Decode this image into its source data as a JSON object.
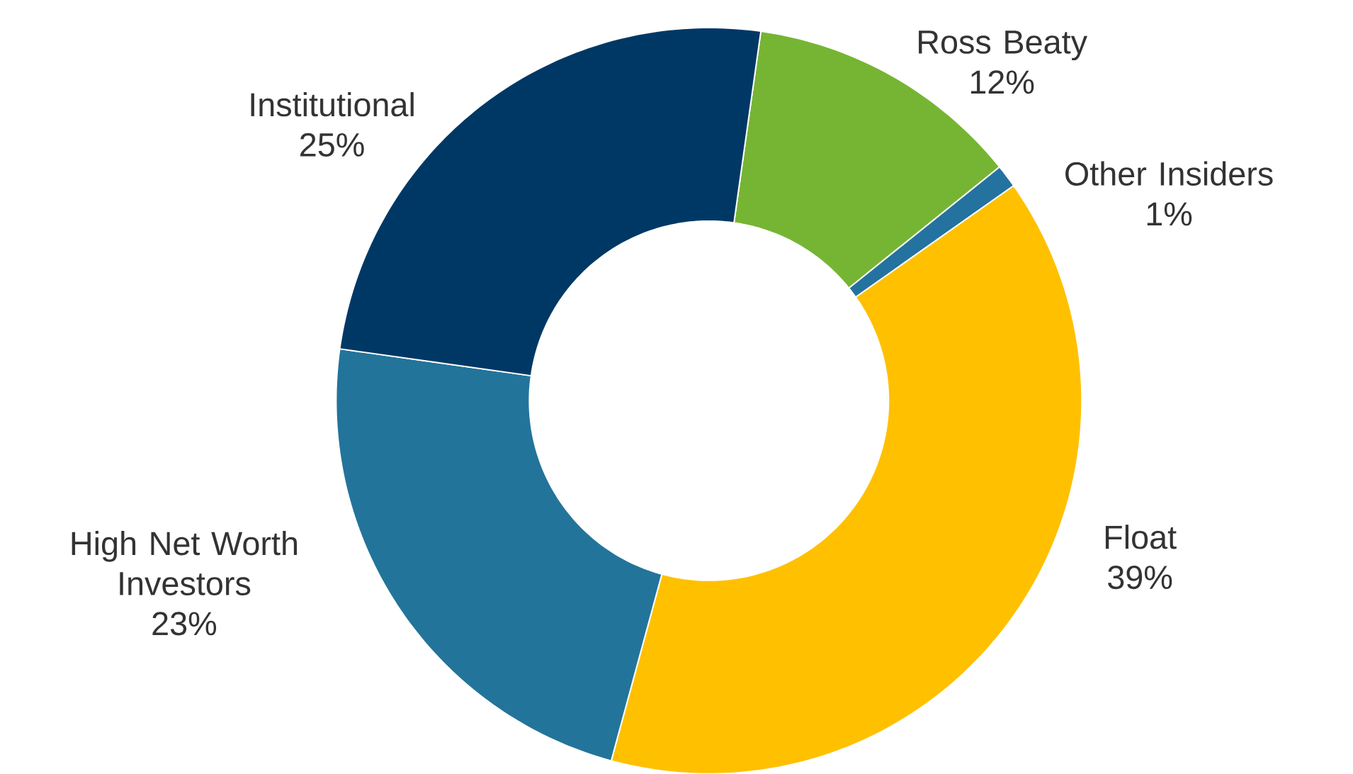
{
  "chart_data": {
    "type": "donut",
    "categories": [
      "Ross Beaty",
      "Other Insiders",
      "Float",
      "High Net Worth Investors",
      "Institutional"
    ],
    "values": [
      12,
      1,
      39,
      23,
      25
    ],
    "colors": [
      "#76b533",
      "#2472a0",
      "#ffc000",
      "#23749a",
      "#003865"
    ],
    "value_labels": [
      "12%",
      "1%",
      "39%",
      "23%",
      "25%"
    ]
  }
}
